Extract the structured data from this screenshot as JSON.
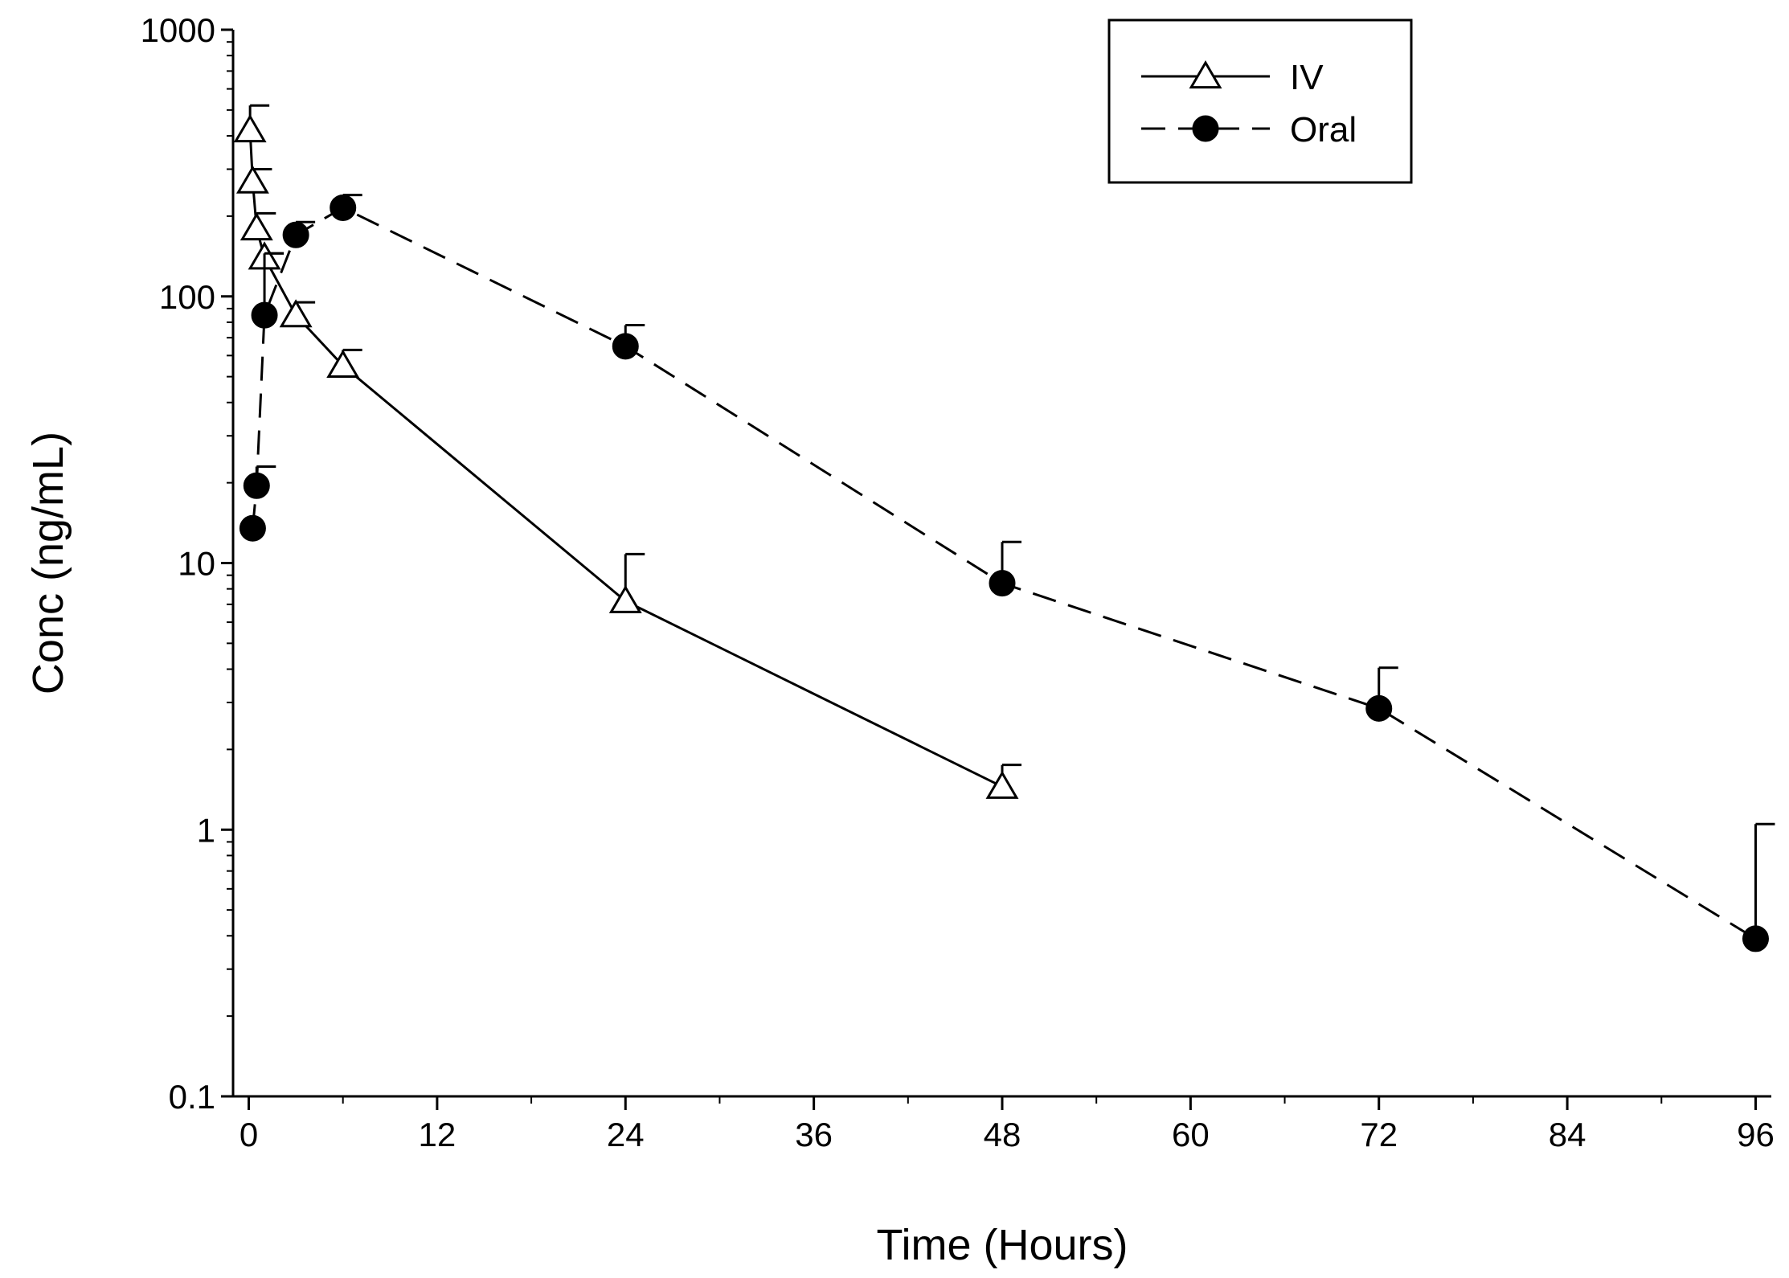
{
  "chart_data": {
    "type": "line",
    "title": "",
    "xlabel": "Time (Hours)",
    "ylabel": "Conc (ng/mL)",
    "xlim": [
      -1,
      97
    ],
    "ylim": [
      0.1,
      1000
    ],
    "yscale": "log",
    "xticks": [
      0,
      12,
      24,
      36,
      48,
      60,
      72,
      84,
      96
    ],
    "xtick_labels": [
      "0",
      "12",
      "24",
      "36",
      "48",
      "60",
      "72",
      "84",
      "96"
    ],
    "yticks": [
      0.1,
      1,
      10,
      100,
      1000
    ],
    "ytick_labels": [
      "0.1",
      "1",
      "10",
      "100",
      "1000"
    ],
    "legend_position": "top-right",
    "series": [
      {
        "name": "IV",
        "marker": "open-triangle",
        "line_style": "solid",
        "x": [
          0.083,
          0.25,
          0.5,
          1,
          3,
          6,
          24,
          48
        ],
        "y": [
          420,
          270,
          180,
          140,
          85,
          55,
          7.2,
          1.45
        ],
        "error_upper": [
          520,
          300,
          205,
          145,
          95,
          63,
          10.8,
          1.75
        ]
      },
      {
        "name": "Oral",
        "marker": "filled-circle",
        "line_style": "dashed",
        "x": [
          0.25,
          0.5,
          1,
          3,
          6,
          24,
          48,
          72,
          96
        ],
        "y": [
          13.5,
          19.5,
          85,
          170,
          215,
          65,
          8.4,
          2.85,
          0.39
        ],
        "error_upper": [
          13.5,
          23,
          145,
          190,
          240,
          78,
          12,
          4.05,
          1.05
        ]
      }
    ]
  }
}
